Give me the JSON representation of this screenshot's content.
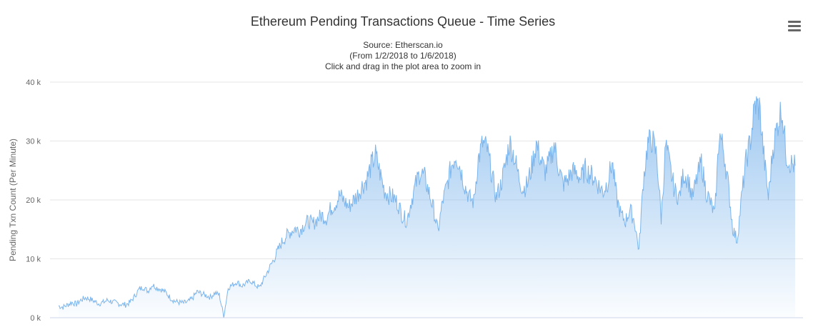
{
  "chart_data": {
    "type": "area",
    "title": "Ethereum Pending Transactions Queue - Time Series",
    "subtitle": [
      "Source: Etherscan.io",
      "(From 1/2/2018 to 1/6/2018)",
      "Click and drag in the plot area to zoom in"
    ],
    "ylabel": "Pending Txn Count (Per Minute)",
    "xlabel": "",
    "ylim": [
      0,
      40000
    ],
    "yticks": [
      0,
      10000,
      20000,
      30000,
      40000
    ],
    "ytick_labels": [
      "0 k",
      "10 k",
      "20 k",
      "30 k",
      "40 k"
    ],
    "grid": true,
    "legend": "none",
    "x_range": [
      "1/2/2018",
      "1/6/2018"
    ],
    "series": [
      {
        "color": "#7cb5ec",
        "values": [
          2000,
          1800,
          2200,
          2600,
          2300,
          3000,
          3400,
          3200,
          2800,
          2400,
          2600,
          3000,
          2700,
          2500,
          2300,
          2200,
          2600,
          3600,
          4800,
          5200,
          4500,
          5600,
          5100,
          4800,
          4300,
          3400,
          2800,
          2600,
          2500,
          2700,
          3300,
          4400,
          4100,
          3800,
          3500,
          4200,
          3900,
          200,
          5100,
          5600,
          6100,
          5400,
          5800,
          6300,
          5600,
          5100,
          6600,
          8100,
          9600,
          11200,
          12800,
          13900,
          14600,
          15200,
          14800,
          15800,
          16400,
          15900,
          16800,
          17400,
          16900,
          18600,
          19400,
          20800,
          19800,
          18800,
          19900,
          20900,
          22400,
          23400,
          25800,
          27600,
          24600,
          21600,
          20800,
          20400,
          19400,
          17400,
          16400,
          19800,
          22600,
          24800,
          23800,
          21200,
          18400,
          14600,
          19600,
          22400,
          25800,
          27800,
          25400,
          22400,
          20400,
          19600,
          26800,
          29600,
          28600,
          24600,
          20400,
          22400,
          25600,
          29800,
          27600,
          24200,
          21800,
          22600,
          25600,
          29600,
          26800,
          24800,
          26600,
          29400,
          25600,
          22600,
          23400,
          24800,
          24600,
          23600,
          25200,
          24400,
          23800,
          22400,
          21400,
          23100,
          26400,
          20400,
          17400,
          16400,
          18400,
          16400,
          11400,
          23400,
          29600,
          30200,
          27400,
          16800,
          29400,
          25400,
          21600,
          20400,
          24400,
          23600,
          20400,
          23600,
          26400,
          21600,
          19600,
          17400,
          31400,
          28400,
          22600,
          15200,
          13100,
          20400,
          26600,
          30200,
          36100,
          35800,
          27400,
          20400,
          28600,
          32600,
          35800,
          27600,
          26200,
          25800
        ]
      }
    ]
  }
}
